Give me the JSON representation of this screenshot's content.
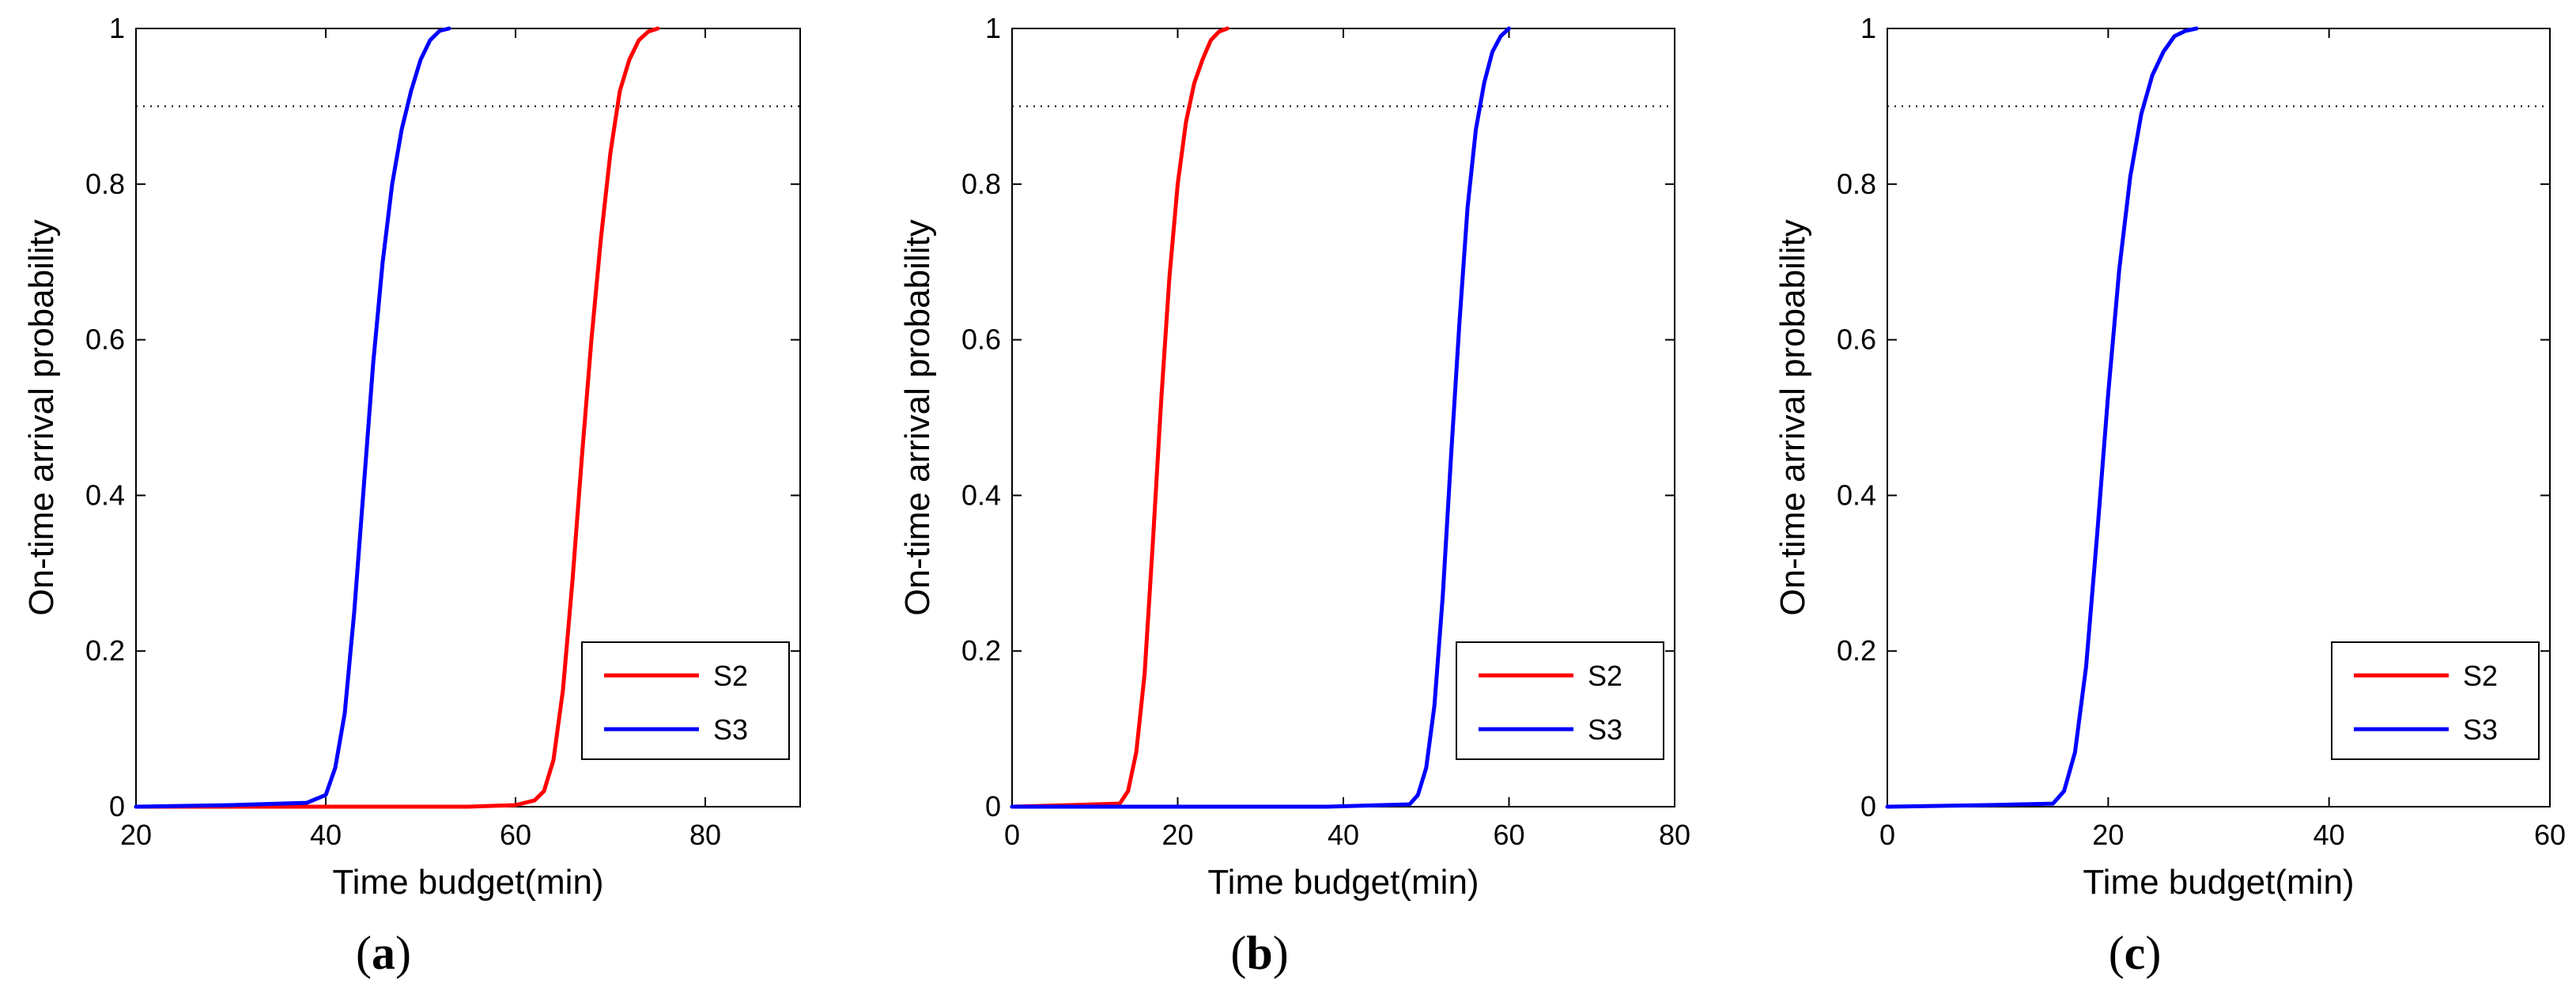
{
  "chart_data": [
    {
      "type": "line",
      "panel_label": "a",
      "xlabel": "Time budget(min)",
      "ylabel": "On-time arrival probability",
      "xlim": [
        20,
        90
      ],
      "ylim": [
        0,
        1
      ],
      "xticks": [
        20,
        40,
        60,
        80
      ],
      "yticks": [
        0,
        0.2,
        0.4,
        0.6,
        0.8,
        1
      ],
      "reference_line": {
        "y": 0.9,
        "style": "dotted"
      },
      "legend": {
        "position": "bottom-right",
        "entries": [
          "S2",
          "S3"
        ]
      },
      "series": [
        {
          "name": "S2",
          "color": "#ff0000",
          "x": [
            20,
            55,
            60,
            62,
            63,
            64,
            65,
            66,
            67,
            68,
            69,
            70,
            71,
            72,
            73,
            74,
            75
          ],
          "y": [
            0,
            0,
            0.002,
            0.008,
            0.02,
            0.06,
            0.15,
            0.29,
            0.45,
            0.6,
            0.73,
            0.84,
            0.92,
            0.96,
            0.985,
            0.996,
            1
          ]
        },
        {
          "name": "S3",
          "color": "#0000ff",
          "x": [
            20,
            30,
            38,
            40,
            41,
            42,
            43,
            44,
            45,
            46,
            47,
            48,
            49,
            50,
            51,
            52,
            53
          ],
          "y": [
            0,
            0.002,
            0.005,
            0.015,
            0.05,
            0.12,
            0.25,
            0.41,
            0.57,
            0.7,
            0.8,
            0.87,
            0.92,
            0.96,
            0.985,
            0.997,
            1
          ]
        }
      ]
    },
    {
      "type": "line",
      "panel_label": "b",
      "xlabel": "Time budget(min)",
      "ylabel": "On-time arrival probability",
      "xlim": [
        0,
        80
      ],
      "ylim": [
        0,
        1
      ],
      "xticks": [
        0,
        20,
        40,
        60,
        80
      ],
      "yticks": [
        0,
        0.2,
        0.4,
        0.6,
        0.8,
        1
      ],
      "reference_line": {
        "y": 0.9,
        "style": "dotted"
      },
      "legend": {
        "position": "bottom-right",
        "entries": [
          "S2",
          "S3"
        ]
      },
      "series": [
        {
          "name": "S2",
          "color": "#ff0000",
          "x": [
            0,
            7,
            13,
            14,
            15,
            16,
            17,
            18,
            19,
            20,
            21,
            22,
            23,
            24,
            25,
            26
          ],
          "y": [
            0,
            0.002,
            0.004,
            0.02,
            0.07,
            0.17,
            0.34,
            0.52,
            0.68,
            0.8,
            0.88,
            0.93,
            0.96,
            0.985,
            0.996,
            1
          ]
        },
        {
          "name": "S3",
          "color": "#0000ff",
          "x": [
            0,
            38,
            48,
            49,
            50,
            51,
            52,
            53,
            54,
            55,
            56,
            57,
            58,
            59,
            60
          ],
          "y": [
            0,
            0,
            0.003,
            0.015,
            0.05,
            0.13,
            0.27,
            0.45,
            0.62,
            0.77,
            0.87,
            0.93,
            0.97,
            0.99,
            1
          ]
        }
      ]
    },
    {
      "type": "line",
      "panel_label": "c",
      "xlabel": "Time budget(min)",
      "ylabel": "On-time arrival probability",
      "xlim": [
        0,
        60
      ],
      "ylim": [
        0,
        1
      ],
      "xticks": [
        0,
        20,
        40,
        60
      ],
      "yticks": [
        0,
        0.2,
        0.4,
        0.6,
        0.8,
        1
      ],
      "reference_line": {
        "y": 0.9,
        "style": "dotted"
      },
      "legend": {
        "position": "bottom-right",
        "entries": [
          "S2",
          "S3"
        ]
      },
      "series": [
        {
          "name": "S2",
          "color": "#ff0000",
          "x": [],
          "y": []
        },
        {
          "name": "S3",
          "color": "#0000ff",
          "x": [
            0,
            9,
            15,
            16,
            17,
            18,
            19,
            20,
            21,
            22,
            23,
            24,
            25,
            26,
            27,
            28
          ],
          "y": [
            0,
            0.002,
            0.004,
            0.02,
            0.07,
            0.18,
            0.35,
            0.53,
            0.69,
            0.81,
            0.89,
            0.94,
            0.97,
            0.99,
            0.997,
            1
          ]
        }
      ]
    }
  ]
}
